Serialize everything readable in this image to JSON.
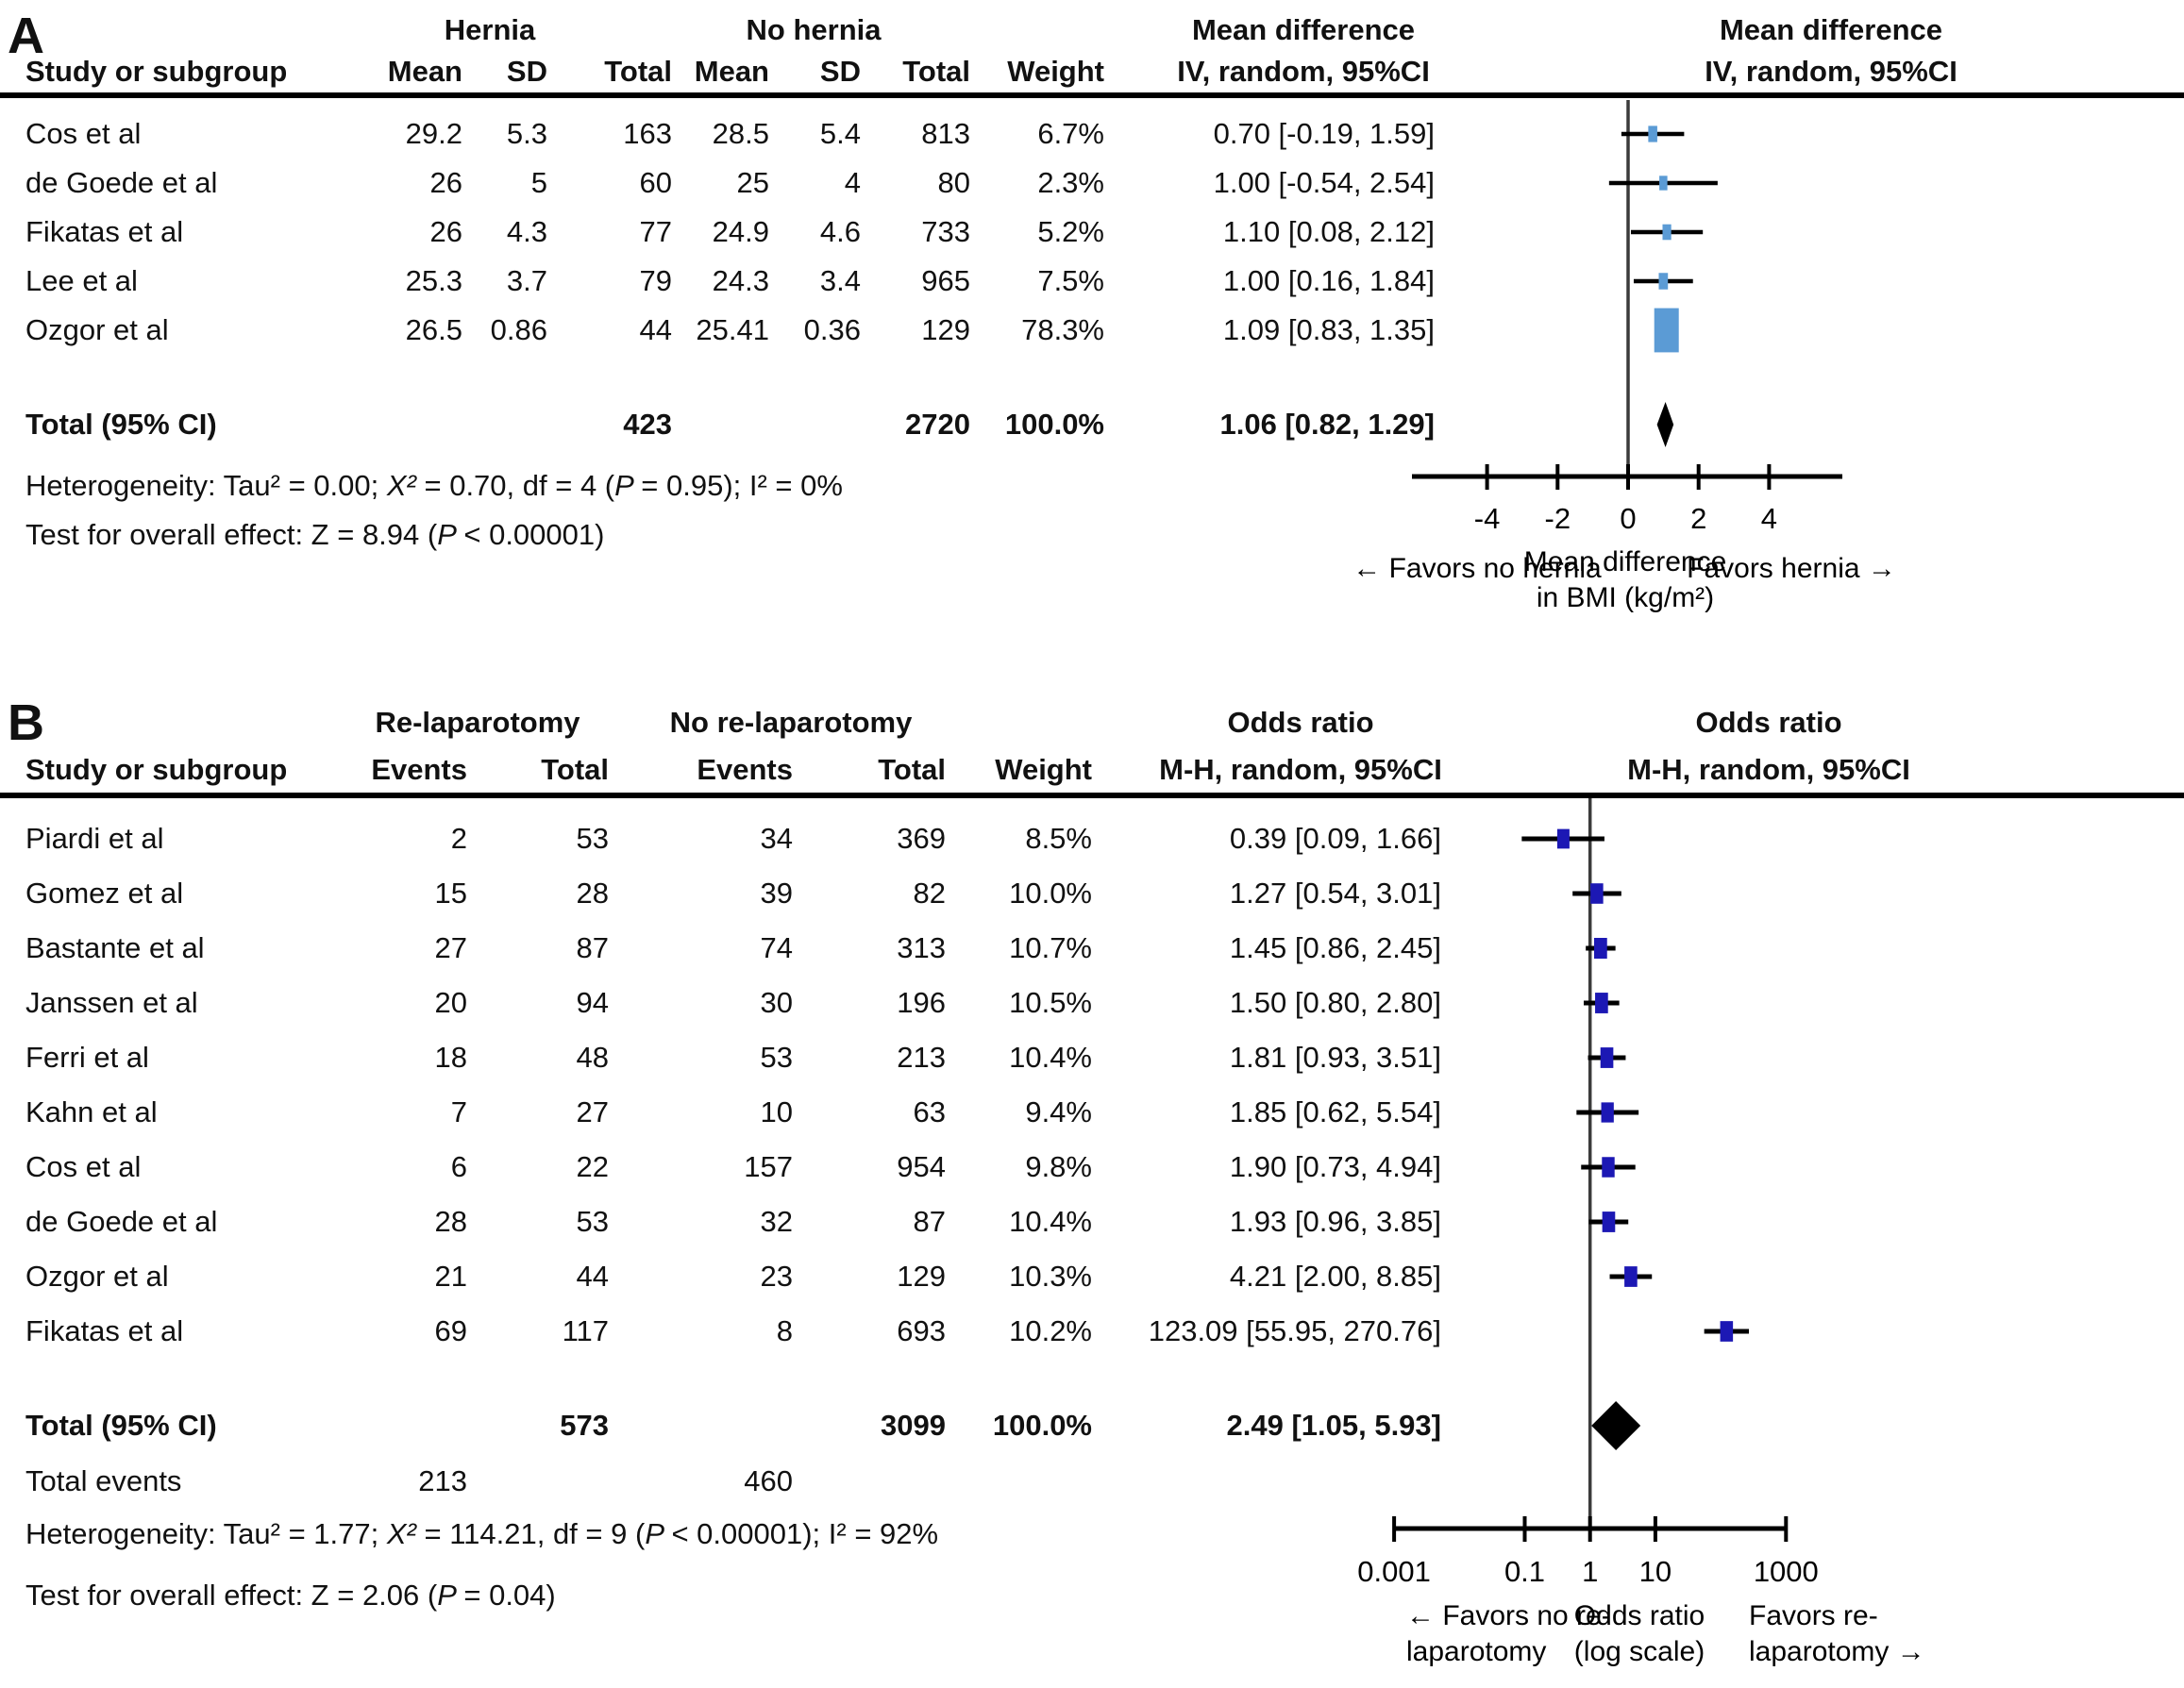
{
  "panel_a": {
    "label": "A",
    "headers": {
      "group1": "Hernia",
      "group2": "No hernia",
      "study": "Study or subgroup",
      "mean": "Mean",
      "sd": "SD",
      "total": "Total",
      "weight": "Weight",
      "effect1": "Mean difference",
      "effect2": "IV, random, 95%CI"
    },
    "studies": [
      {
        "name": "Cos et al",
        "mean1": "29.2",
        "sd1": "5.3",
        "total1": "163",
        "mean2": "28.5",
        "sd2": "5.4",
        "total2": "813",
        "weight": "6.7%",
        "ci_text": "0.70 [-0.19, 1.59]"
      },
      {
        "name": "de Goede et al",
        "mean1": "26",
        "sd1": "5",
        "total1": "60",
        "mean2": "25",
        "sd2": "4",
        "total2": "80",
        "weight": "2.3%",
        "ci_text": "1.00 [-0.54, 2.54]"
      },
      {
        "name": "Fikatas et al",
        "mean1": "26",
        "sd1": "4.3",
        "total1": "77",
        "mean2": "24.9",
        "sd2": "4.6",
        "total2": "733",
        "weight": "5.2%",
        "ci_text": "1.10 [0.08, 2.12]"
      },
      {
        "name": "Lee et al",
        "mean1": "25.3",
        "sd1": "3.7",
        "total1": "79",
        "mean2": "24.3",
        "sd2": "3.4",
        "total2": "965",
        "weight": "7.5%",
        "ci_text": "1.00 [0.16, 1.84]"
      },
      {
        "name": "Ozgor et al",
        "mean1": "26.5",
        "sd1": "0.86",
        "total1": "44",
        "mean2": "25.41",
        "sd2": "0.36",
        "total2": "129",
        "weight": "78.3%",
        "ci_text": "1.09 [0.83, 1.35]"
      }
    ],
    "total_row": {
      "label": "Total (95% CI)",
      "total1": "423",
      "total2": "2720",
      "weight": "100.0%",
      "ci_text": "1.06 [0.82, 1.29]"
    },
    "heterogeneity": [
      {
        "t": "Heterogeneity: Tau² = 0.00;  "
      },
      {
        "t": "Χ²",
        "i": 1
      },
      {
        "t": " = 0.70, df = 4 ("
      },
      {
        "t": "P ",
        "i": 1
      },
      {
        "t": " = 0.95); I² = 0%"
      }
    ],
    "overall": [
      {
        "t": "Test for overall effect: Z = 8.94 ("
      },
      {
        "t": "P ",
        "i": 1
      },
      {
        "t": " < 0.00001)"
      }
    ]
  },
  "panel_b": {
    "label": "B",
    "headers": {
      "group1": "Re-laparotomy",
      "group2": "No re-laparotomy",
      "study": "Study or subgroup",
      "events": "Events",
      "total": "Total",
      "weight": "Weight",
      "effect1": "Odds ratio",
      "effect2": "M-H, random, 95%CI"
    },
    "studies": [
      {
        "name": "Piardi et al",
        "events1": "2",
        "total1": "53",
        "events2": "34",
        "total2": "369",
        "weight": "8.5%",
        "ci_text": "0.39 [0.09, 1.66]"
      },
      {
        "name": "Gomez et al",
        "events1": "15",
        "total1": "28",
        "events2": "39",
        "total2": "82",
        "weight": "10.0%",
        "ci_text": "1.27 [0.54, 3.01]"
      },
      {
        "name": "Bastante et al",
        "events1": "27",
        "total1": "87",
        "events2": "74",
        "total2": "313",
        "weight": "10.7%",
        "ci_text": "1.45 [0.86, 2.45]"
      },
      {
        "name": "Janssen et al",
        "events1": "20",
        "total1": "94",
        "events2": "30",
        "total2": "196",
        "weight": "10.5%",
        "ci_text": "1.50 [0.80, 2.80]"
      },
      {
        "name": "Ferri et al",
        "events1": "18",
        "total1": "48",
        "events2": "53",
        "total2": "213",
        "weight": "10.4%",
        "ci_text": "1.81 [0.93, 3.51]"
      },
      {
        "name": "Kahn et al",
        "events1": "7",
        "total1": "27",
        "events2": "10",
        "total2": "63",
        "weight": "9.4%",
        "ci_text": "1.85 [0.62, 5.54]"
      },
      {
        "name": "Cos et al",
        "events1": "6",
        "total1": "22",
        "events2": "157",
        "total2": "954",
        "weight": "9.8%",
        "ci_text": "1.90 [0.73, 4.94]"
      },
      {
        "name": "de Goede et al",
        "events1": "28",
        "total1": "53",
        "events2": "32",
        "total2": "87",
        "weight": "10.4%",
        "ci_text": "1.93 [0.96, 3.85]"
      },
      {
        "name": "Ozgor et al",
        "events1": "21",
        "total1": "44",
        "events2": "23",
        "total2": "129",
        "weight": "10.3%",
        "ci_text": "4.21 [2.00, 8.85]"
      },
      {
        "name": "Fikatas et al",
        "events1": "69",
        "total1": "117",
        "events2": "8",
        "total2": "693",
        "weight": "10.2%",
        "ci_text": "123.09 [55.95, 270.76]"
      }
    ],
    "total_row": {
      "label": "Total (95% CI)",
      "total1": "573",
      "total2": "3099",
      "weight": "100.0%",
      "ci_text": "2.49 [1.05, 5.93]"
    },
    "total_events": {
      "label": "Total events",
      "events1": "213",
      "events2": "460"
    },
    "heterogeneity": [
      {
        "t": "Heterogeneity: Tau² = 1.77;  "
      },
      {
        "t": "Χ²",
        "i": 1
      },
      {
        "t": " = 114.21, df = 9 ("
      },
      {
        "t": "P ",
        "i": 1
      },
      {
        "t": " < 0.00001); I² = 92%"
      }
    ],
    "overall": [
      {
        "t": "Test for overall effect: Z = 2.06 ("
      },
      {
        "t": "P ",
        "i": 1
      },
      {
        "t": " = 0.04)"
      }
    ]
  },
  "chart_data": [
    {
      "type": "forest",
      "panel": "A",
      "effect_header": "Mean difference",
      "model_header": "IV, random, 95%CI",
      "scale": "linear",
      "ref_value": 0,
      "marker_color": "#5b9bd5",
      "diamond_color": "#000000",
      "axis": {
        "tick_values": [
          -4,
          -2,
          0,
          2,
          4
        ],
        "tick_labels": [
          "-4",
          "-2",
          "0",
          "2",
          "4"
        ],
        "range": [
          -6.1,
          6.1
        ]
      },
      "studies": [
        {
          "name": "Cos et al",
          "est": 0.7,
          "lo": -0.19,
          "hi": 1.59,
          "weight_pct": 6.7
        },
        {
          "name": "de Goede et al",
          "est": 1.0,
          "lo": -0.54,
          "hi": 2.54,
          "weight_pct": 2.3
        },
        {
          "name": "Fikatas et al",
          "est": 1.1,
          "lo": 0.08,
          "hi": 2.12,
          "weight_pct": 5.2
        },
        {
          "name": "Lee et al",
          "est": 1.0,
          "lo": 0.16,
          "hi": 1.84,
          "weight_pct": 7.5
        },
        {
          "name": "Ozgor et al",
          "est": 1.09,
          "lo": 0.83,
          "hi": 1.35,
          "weight_pct": 78.3
        }
      ],
      "total": {
        "est": 1.06,
        "lo": 0.82,
        "hi": 1.29
      },
      "footer_texts": [
        {
          "name": "favors-left-label",
          "lines": [
            "← Favors no hernia"
          ]
        },
        {
          "name": "axis-title",
          "lines": [
            "Mean difference",
            "in BMI (kg/m²)"
          ]
        },
        {
          "name": "favors-right-label",
          "lines": [
            "Favors hernia →"
          ]
        }
      ]
    },
    {
      "type": "forest",
      "panel": "B",
      "effect_header": "Odds ratio",
      "model_header": "M-H, random, 95%CI",
      "scale": "log10",
      "ref_value": 1,
      "marker_color": "#1c18b4",
      "diamond_color": "#000000",
      "axis": {
        "tick_values": [
          0.001,
          0.1,
          1,
          10,
          1000
        ],
        "tick_labels": [
          "0.001",
          "0.1",
          "1",
          "10",
          "1000"
        ],
        "range": [
          0.001,
          1000
        ]
      },
      "studies": [
        {
          "name": "Piardi et al",
          "est": 0.39,
          "lo": 0.09,
          "hi": 1.66,
          "weight_pct": 8.5
        },
        {
          "name": "Gomez et al",
          "est": 1.27,
          "lo": 0.54,
          "hi": 3.01,
          "weight_pct": 10.0
        },
        {
          "name": "Bastante et al",
          "est": 1.45,
          "lo": 0.86,
          "hi": 2.45,
          "weight_pct": 10.7
        },
        {
          "name": "Janssen et al",
          "est": 1.5,
          "lo": 0.8,
          "hi": 2.8,
          "weight_pct": 10.5
        },
        {
          "name": "Ferri et al",
          "est": 1.81,
          "lo": 0.93,
          "hi": 3.51,
          "weight_pct": 10.4
        },
        {
          "name": "Kahn et al",
          "est": 1.85,
          "lo": 0.62,
          "hi": 5.54,
          "weight_pct": 9.4
        },
        {
          "name": "Cos et al",
          "est": 1.9,
          "lo": 0.73,
          "hi": 4.94,
          "weight_pct": 9.8
        },
        {
          "name": "de Goede et al",
          "est": 1.93,
          "lo": 0.96,
          "hi": 3.85,
          "weight_pct": 10.4
        },
        {
          "name": "Ozgor et al",
          "est": 4.21,
          "lo": 2.0,
          "hi": 8.85,
          "weight_pct": 10.3
        },
        {
          "name": "Fikatas et al",
          "est": 123.09,
          "lo": 55.95,
          "hi": 270.76,
          "weight_pct": 10.2
        }
      ],
      "total": {
        "est": 2.49,
        "lo": 1.05,
        "hi": 5.93
      },
      "footer_texts": [
        {
          "name": "favors-left-label",
          "lines": [
            "← Favors no re-",
            "laparotomy"
          ]
        },
        {
          "name": "axis-title",
          "lines": [
            "Odds ratio",
            "(log scale)"
          ]
        },
        {
          "name": "favors-right-label",
          "lines": [
            "Favors re-",
            "laparotomy →"
          ]
        }
      ]
    }
  ]
}
